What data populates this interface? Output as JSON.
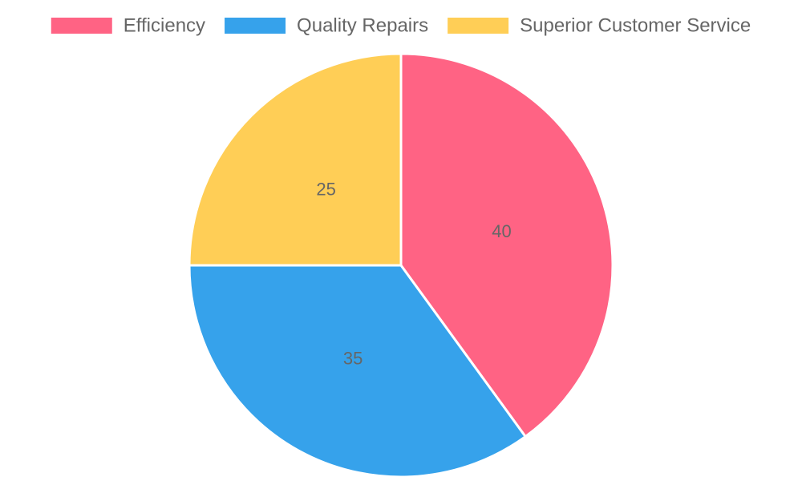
{
  "chart_data": {
    "type": "pie",
    "categories": [
      "Efficiency",
      "Quality Repairs",
      "Superior Customer Service"
    ],
    "values": [
      40,
      35,
      25
    ],
    "colors": [
      "#ff6384",
      "#36a2eb",
      "#ffce56"
    ],
    "legend": "top"
  }
}
